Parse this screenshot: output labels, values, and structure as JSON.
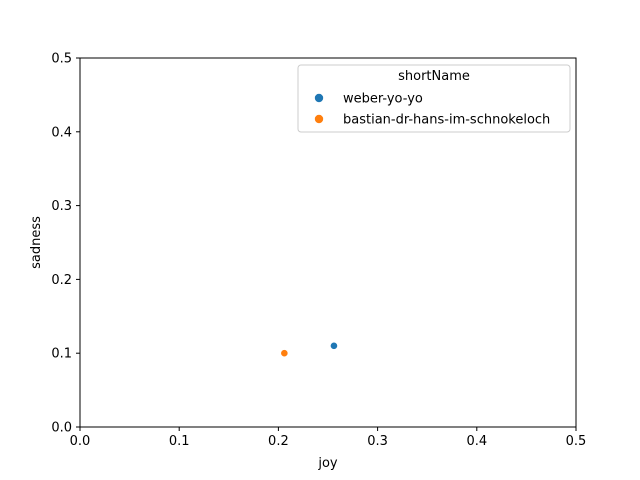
{
  "chart_data": {
    "type": "scatter",
    "title": "",
    "xlabel": "joy",
    "ylabel": "sadness",
    "xlim": [
      0,
      0.5
    ],
    "ylim": [
      0,
      0.5
    ],
    "xticks": [
      "0.0",
      "0.1",
      "0.2",
      "0.3",
      "0.4",
      "0.5"
    ],
    "yticks": [
      "0.0",
      "0.1",
      "0.2",
      "0.3",
      "0.4",
      "0.5"
    ],
    "grid": false,
    "legend": {
      "title": "shortName",
      "placement": "top-right"
    },
    "series": [
      {
        "name": "weber-yo-yo",
        "color": "#1f77b4",
        "points": [
          {
            "x": 0.256,
            "y": 0.11
          }
        ]
      },
      {
        "name": "bastian-dr-hans-im-schnokeloch",
        "color": "#ff7f0e",
        "points": [
          {
            "x": 0.206,
            "y": 0.1
          }
        ]
      }
    ]
  }
}
